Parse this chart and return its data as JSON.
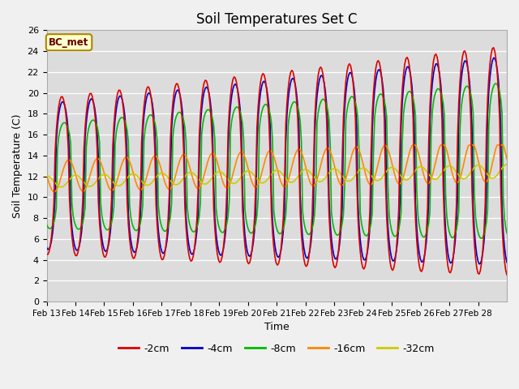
{
  "title": "Soil Temperatures Set C",
  "xlabel": "Time",
  "ylabel": "Soil Temperature (C)",
  "annotation": "BC_met",
  "ylim": [
    0,
    26
  ],
  "yticks": [
    0,
    2,
    4,
    6,
    8,
    10,
    12,
    14,
    16,
    18,
    20,
    22,
    24,
    26
  ],
  "xtick_labels": [
    "Feb 13",
    "Feb 14",
    "Feb 15",
    "Feb 16",
    "Feb 17",
    "Feb 18",
    "Feb 19",
    "Feb 20",
    "Feb 21",
    "Feb 22",
    "Feb 23",
    "Feb 24",
    "Feb 25",
    "Feb 26",
    "Feb 27",
    "Feb 28"
  ],
  "colors": {
    "-2cm": "#dd0000",
    "-4cm": "#0000cc",
    "-8cm": "#00bb00",
    "-16cm": "#ff8800",
    "-32cm": "#cccc00"
  },
  "lw": 1.2,
  "bg_color": "#dcdcdc",
  "fig_bg": "#f0f0f0",
  "legend_labels": [
    "-2cm",
    "-4cm",
    "-8cm",
    "-16cm",
    "-32cm"
  ]
}
